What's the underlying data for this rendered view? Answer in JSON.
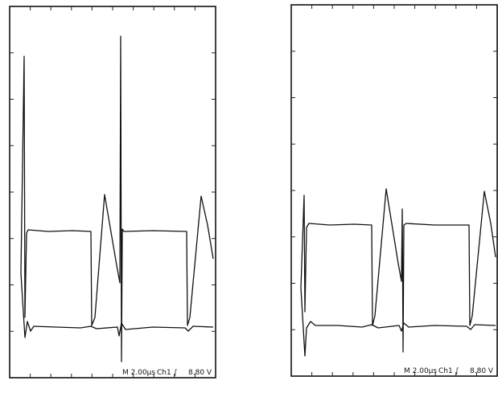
{
  "panels": [
    {
      "time_base": "M 2.00µs",
      "channel": "Ch1 ∫",
      "level": "8.80 V"
    },
    {
      "time_base": "M 2.00µs",
      "channel": "Ch1 ∫",
      "level": "8.80 V"
    }
  ]
}
